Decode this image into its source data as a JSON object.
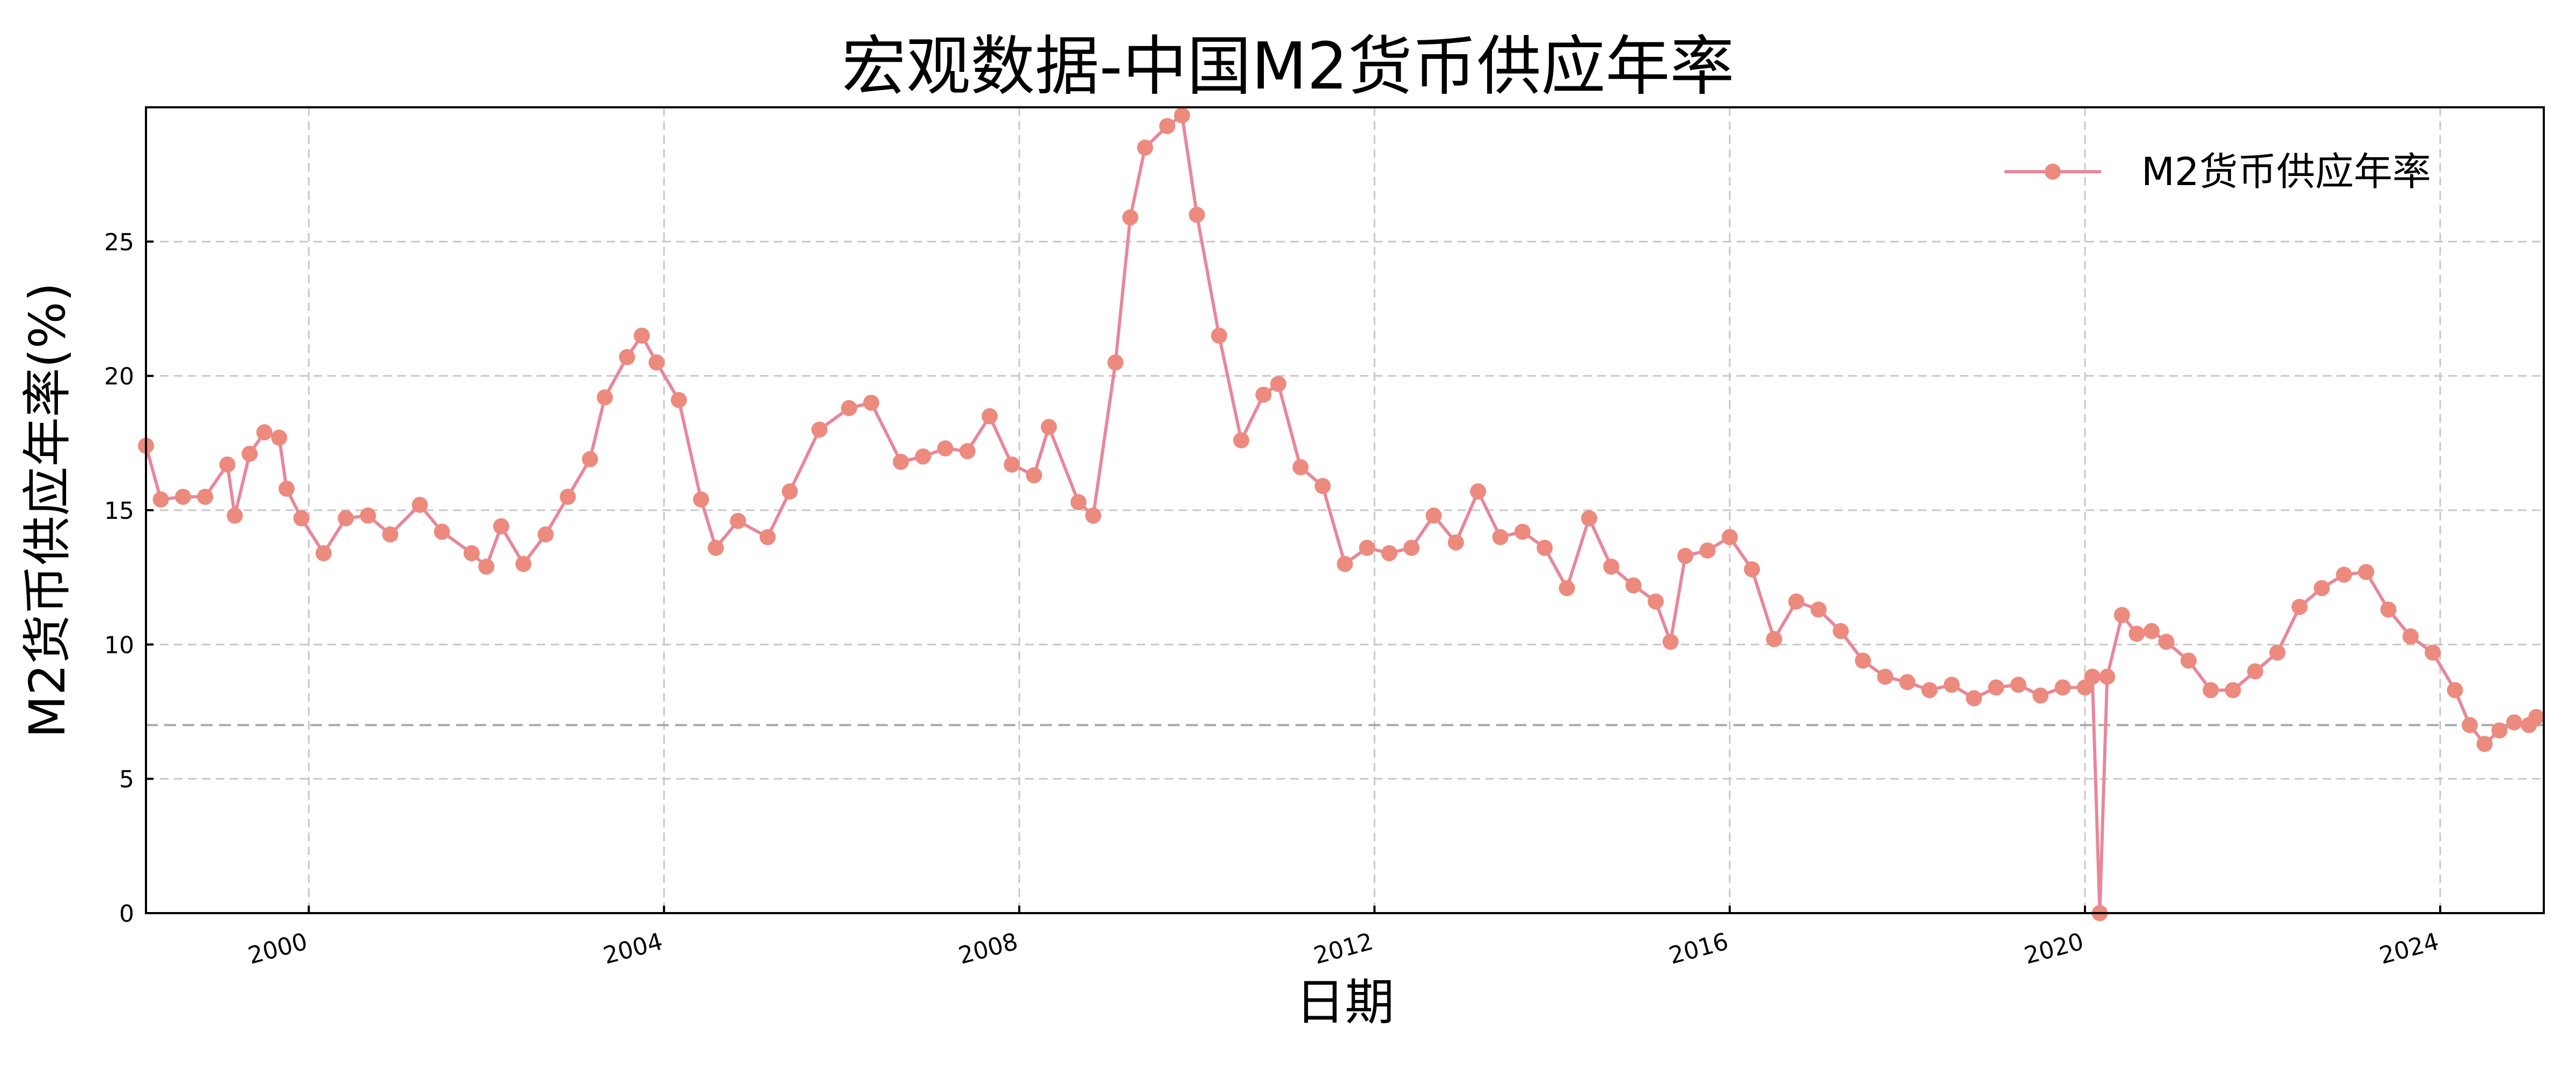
{
  "chart_data": {
    "type": "line",
    "title": "宏观数据-中国M2货币供应年率",
    "xlabel": "日期",
    "ylabel": "M2货币供应年率(%)",
    "ylim": [
      0,
      30
    ],
    "yticks": [
      0,
      5,
      10,
      15,
      20,
      25
    ],
    "xlim": [
      "1998-03",
      "2025-03"
    ],
    "xticks": [
      "2000",
      "2004",
      "2008",
      "2012",
      "2016",
      "2020",
      "2024"
    ],
    "grid": true,
    "legend": {
      "position": "upper right"
    },
    "reference_line": {
      "value": 7,
      "style": "dashed",
      "color": "#a8a8a8"
    },
    "series": [
      {
        "name": "M2货币供应年率",
        "color": "#e8879a",
        "marker_color": "#ec8a7e",
        "points": [
          [
            "1998-03",
            17.4
          ],
          [
            "1998-05",
            15.4
          ],
          [
            "1998-08",
            15.5
          ],
          [
            "1998-11",
            15.5
          ],
          [
            "1999-02",
            16.7
          ],
          [
            "1999-03",
            14.8
          ],
          [
            "1999-05",
            17.1
          ],
          [
            "1999-07",
            17.9
          ],
          [
            "1999-09",
            17.7
          ],
          [
            "1999-10",
            15.8
          ],
          [
            "1999-12",
            14.7
          ],
          [
            "2000-03",
            13.4
          ],
          [
            "2000-06",
            14.7
          ],
          [
            "2000-09",
            14.8
          ],
          [
            "2000-12",
            14.1
          ],
          [
            "2001-04",
            15.2
          ],
          [
            "2001-07",
            14.2
          ],
          [
            "2001-11",
            13.4
          ],
          [
            "2002-01",
            12.9
          ],
          [
            "2002-03",
            14.4
          ],
          [
            "2002-06",
            13.0
          ],
          [
            "2002-09",
            14.1
          ],
          [
            "2002-12",
            15.5
          ],
          [
            "2003-03",
            16.9
          ],
          [
            "2003-05",
            19.2
          ],
          [
            "2003-08",
            20.7
          ],
          [
            "2003-10",
            21.5
          ],
          [
            "2003-12",
            20.5
          ],
          [
            "2004-03",
            19.1
          ],
          [
            "2004-06",
            15.4
          ],
          [
            "2004-08",
            13.6
          ],
          [
            "2004-11",
            14.6
          ],
          [
            "2005-03",
            14.0
          ],
          [
            "2005-06",
            15.7
          ],
          [
            "2005-10",
            18.0
          ],
          [
            "2006-02",
            18.8
          ],
          [
            "2006-05",
            19.0
          ],
          [
            "2006-09",
            16.8
          ],
          [
            "2006-12",
            17.0
          ],
          [
            "2007-03",
            17.3
          ],
          [
            "2007-06",
            17.2
          ],
          [
            "2007-09",
            18.5
          ],
          [
            "2007-12",
            16.7
          ],
          [
            "2008-03",
            16.3
          ],
          [
            "2008-05",
            18.1
          ],
          [
            "2008-09",
            15.3
          ],
          [
            "2008-11",
            14.8
          ],
          [
            "2009-02",
            20.5
          ],
          [
            "2009-04",
            25.9
          ],
          [
            "2009-06",
            28.5
          ],
          [
            "2009-09",
            29.3
          ],
          [
            "2009-11",
            29.7
          ],
          [
            "2010-01",
            26.0
          ],
          [
            "2010-04",
            21.5
          ],
          [
            "2010-07",
            17.6
          ],
          [
            "2010-10",
            19.3
          ],
          [
            "2010-12",
            19.7
          ],
          [
            "2011-03",
            16.6
          ],
          [
            "2011-06",
            15.9
          ],
          [
            "2011-09",
            13.0
          ],
          [
            "2011-12",
            13.6
          ],
          [
            "2012-03",
            13.4
          ],
          [
            "2012-06",
            13.6
          ],
          [
            "2012-09",
            14.8
          ],
          [
            "2012-12",
            13.8
          ],
          [
            "2013-03",
            15.7
          ],
          [
            "2013-06",
            14.0
          ],
          [
            "2013-09",
            14.2
          ],
          [
            "2013-12",
            13.6
          ],
          [
            "2014-03",
            12.1
          ],
          [
            "2014-06",
            14.7
          ],
          [
            "2014-09",
            12.9
          ],
          [
            "2014-12",
            12.2
          ],
          [
            "2015-03",
            11.6
          ],
          [
            "2015-05",
            10.1
          ],
          [
            "2015-07",
            13.3
          ],
          [
            "2015-10",
            13.5
          ],
          [
            "2016-01",
            14.0
          ],
          [
            "2016-04",
            12.8
          ],
          [
            "2016-07",
            10.2
          ],
          [
            "2016-10",
            11.6
          ],
          [
            "2017-01",
            11.3
          ],
          [
            "2017-04",
            10.5
          ],
          [
            "2017-07",
            9.4
          ],
          [
            "2017-10",
            8.8
          ],
          [
            "2018-01",
            8.6
          ],
          [
            "2018-04",
            8.3
          ],
          [
            "2018-07",
            8.5
          ],
          [
            "2018-10",
            8.0
          ],
          [
            "2019-01",
            8.4
          ],
          [
            "2019-04",
            8.5
          ],
          [
            "2019-07",
            8.1
          ],
          [
            "2019-10",
            8.4
          ],
          [
            "2020-01",
            8.4
          ],
          [
            "2020-02",
            8.8
          ],
          [
            "2020-03",
            0.0
          ],
          [
            "2020-04",
            8.8
          ],
          [
            "2020-06",
            11.1
          ],
          [
            "2020-08",
            10.4
          ],
          [
            "2020-10",
            10.5
          ],
          [
            "2020-12",
            10.1
          ],
          [
            "2021-03",
            9.4
          ],
          [
            "2021-06",
            8.3
          ],
          [
            "2021-09",
            8.3
          ],
          [
            "2021-12",
            9.0
          ],
          [
            "2022-03",
            9.7
          ],
          [
            "2022-06",
            11.4
          ],
          [
            "2022-09",
            12.1
          ],
          [
            "2022-12",
            12.6
          ],
          [
            "2023-03",
            12.7
          ],
          [
            "2023-06",
            11.3
          ],
          [
            "2023-09",
            10.3
          ],
          [
            "2023-12",
            9.7
          ],
          [
            "2024-03",
            8.3
          ],
          [
            "2024-05",
            7.0
          ],
          [
            "2024-07",
            6.3
          ],
          [
            "2024-09",
            6.8
          ],
          [
            "2024-11",
            7.1
          ],
          [
            "2025-01",
            7.0
          ],
          [
            "2025-02",
            7.3
          ]
        ]
      }
    ]
  }
}
